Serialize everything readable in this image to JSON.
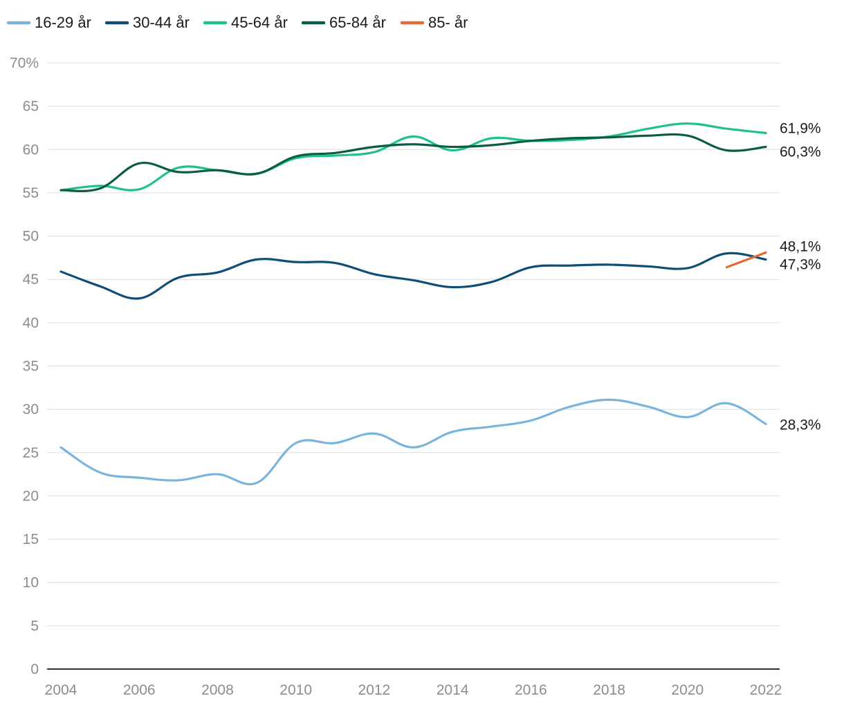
{
  "chart_data": {
    "type": "line",
    "title": "",
    "xlabel": "",
    "ylabel": "",
    "y_unit_top_label": "70%",
    "xlim": [
      2004,
      2022
    ],
    "ylim": [
      0,
      70
    ],
    "y_ticks": [
      "0",
      "5",
      "10",
      "15",
      "20",
      "25",
      "30",
      "35",
      "40",
      "45",
      "50",
      "55",
      "60",
      "65",
      "70%"
    ],
    "x_ticks": [
      "2004",
      "2006",
      "2008",
      "2010",
      "2012",
      "2014",
      "2016",
      "2018",
      "2020",
      "2022"
    ],
    "grid": true,
    "legend_position": "top-left",
    "series": [
      {
        "name": "16-29 år",
        "color": "#7ab4dc",
        "x": [
          2004,
          2005,
          2006,
          2007,
          2008,
          2009,
          2010,
          2011,
          2012,
          2013,
          2014,
          2015,
          2016,
          2017,
          2018,
          2019,
          2020,
          2021,
          2022
        ],
        "values": [
          25.6,
          22.7,
          22.1,
          21.8,
          22.5,
          21.5,
          26.1,
          26.1,
          27.2,
          25.6,
          27.4,
          28.0,
          28.7,
          30.3,
          31.1,
          30.3,
          29.1,
          30.7,
          28.3
        ],
        "end_label": "28,3%"
      },
      {
        "name": "30-44 år",
        "color": "#0e4d75",
        "x": [
          2004,
          2005,
          2006,
          2007,
          2008,
          2009,
          2010,
          2011,
          2012,
          2013,
          2014,
          2015,
          2016,
          2017,
          2018,
          2019,
          2020,
          2021,
          2022
        ],
        "values": [
          45.9,
          44.2,
          42.8,
          45.2,
          45.8,
          47.3,
          47.0,
          46.9,
          45.6,
          44.9,
          44.1,
          44.7,
          46.4,
          46.6,
          46.7,
          46.5,
          46.3,
          48.0,
          47.3
        ],
        "end_label": "47,3%"
      },
      {
        "name": "45-64 år",
        "color": "#1fc18a",
        "x": [
          2004,
          2005,
          2006,
          2007,
          2008,
          2009,
          2010,
          2011,
          2012,
          2013,
          2014,
          2015,
          2016,
          2017,
          2018,
          2019,
          2020,
          2021,
          2022
        ],
        "values": [
          55.3,
          55.8,
          55.4,
          57.9,
          57.6,
          57.2,
          59.0,
          59.3,
          59.7,
          61.5,
          59.9,
          61.3,
          61.0,
          61.1,
          61.5,
          62.4,
          63.0,
          62.4,
          61.9
        ],
        "end_label": "61,9%"
      },
      {
        "name": "65-84 år",
        "color": "#0a5c4a",
        "x": [
          2004,
          2005,
          2006,
          2007,
          2008,
          2009,
          2010,
          2011,
          2012,
          2013,
          2014,
          2015,
          2016,
          2017,
          2018,
          2019,
          2020,
          2021,
          2022
        ],
        "values": [
          55.3,
          55.5,
          58.4,
          57.4,
          57.6,
          57.2,
          59.2,
          59.6,
          60.3,
          60.6,
          60.3,
          60.5,
          61.0,
          61.3,
          61.4,
          61.6,
          61.6,
          59.9,
          60.3
        ],
        "end_label": "60,3%"
      },
      {
        "name": "85- år",
        "color": "#e06a35",
        "x": [
          2021,
          2022
        ],
        "values": [
          46.4,
          48.1
        ],
        "end_label": "48,1%"
      }
    ]
  }
}
